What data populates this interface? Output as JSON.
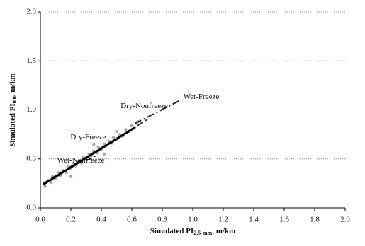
{
  "chart_data": {
    "type": "scatter",
    "xlabel": {
      "main": "Simulated PI",
      "sub": "2.5-mm",
      "rest": ", m/km"
    },
    "ylabel": {
      "main": "Simulated PI",
      "sub": "0.0",
      "rest": ", m/km"
    },
    "xlim": [
      0,
      2
    ],
    "ylim": [
      0,
      2
    ],
    "xticks": [
      {
        "value": 0,
        "label": "0.0"
      },
      0.2,
      0.4,
      0.6,
      0.8,
      {
        "value": 1,
        "label": "1.0"
      },
      1.2,
      1.4,
      1.6,
      1.8,
      {
        "value": 2,
        "label": "2.0"
      }
    ],
    "yticks": [
      {
        "value": 0,
        "label": "0.0"
      },
      0.5,
      {
        "value": 1,
        "label": "1.0"
      },
      1.5,
      {
        "value": 2,
        "label": "2.0"
      }
    ],
    "grid": true,
    "series": [
      {
        "type": "scatter",
        "color": "#a8a8a8",
        "x": [
          0.03,
          0.05,
          0.07,
          0.08,
          0.1,
          0.12,
          0.13,
          0.15,
          0.17,
          0.18,
          0.2,
          0.22,
          0.23,
          0.25,
          0.27,
          0.28,
          0.3,
          0.32,
          0.33,
          0.35,
          0.37,
          0.38,
          0.4,
          0.42,
          0.43,
          0.45,
          0.47,
          0.48,
          0.5,
          0.52,
          0.54,
          0.56,
          0.58,
          0.6,
          0.62,
          0.64,
          0.35,
          0.42,
          0.5,
          0.2
        ],
        "values": [
          0.22,
          0.28,
          0.26,
          0.32,
          0.3,
          0.36,
          0.33,
          0.38,
          0.36,
          0.42,
          0.4,
          0.45,
          0.43,
          0.48,
          0.46,
          0.52,
          0.5,
          0.55,
          0.53,
          0.58,
          0.56,
          0.62,
          0.6,
          0.65,
          0.63,
          0.68,
          0.66,
          0.72,
          0.7,
          0.75,
          0.73,
          0.8,
          0.78,
          0.84,
          0.82,
          0.88,
          0.65,
          0.55,
          0.78,
          0.32
        ]
      },
      {
        "type": "line",
        "name": "Wet-Nonfreeze",
        "color": "#222222",
        "style": "dash",
        "x": [
          0.02,
          0.7
        ],
        "values": [
          0.25,
          0.9
        ]
      },
      {
        "type": "line",
        "name": "Dry-Nonfreeze",
        "color": "#000000",
        "style": "solid",
        "x": [
          0.02,
          0.62
        ],
        "values": [
          0.24,
          0.82
        ]
      },
      {
        "type": "line",
        "name": "Wet-Freeze",
        "color": "#222222",
        "style": "dashdot",
        "x": [
          0.62,
          0.92
        ],
        "values": [
          0.86,
          1.1
        ]
      },
      {
        "type": "line",
        "name": "Dry-Freeze",
        "color": "#222222",
        "style": "dash",
        "x": [
          0.3,
          0.36
        ],
        "values": [
          0.48,
          0.53
        ]
      }
    ]
  }
}
